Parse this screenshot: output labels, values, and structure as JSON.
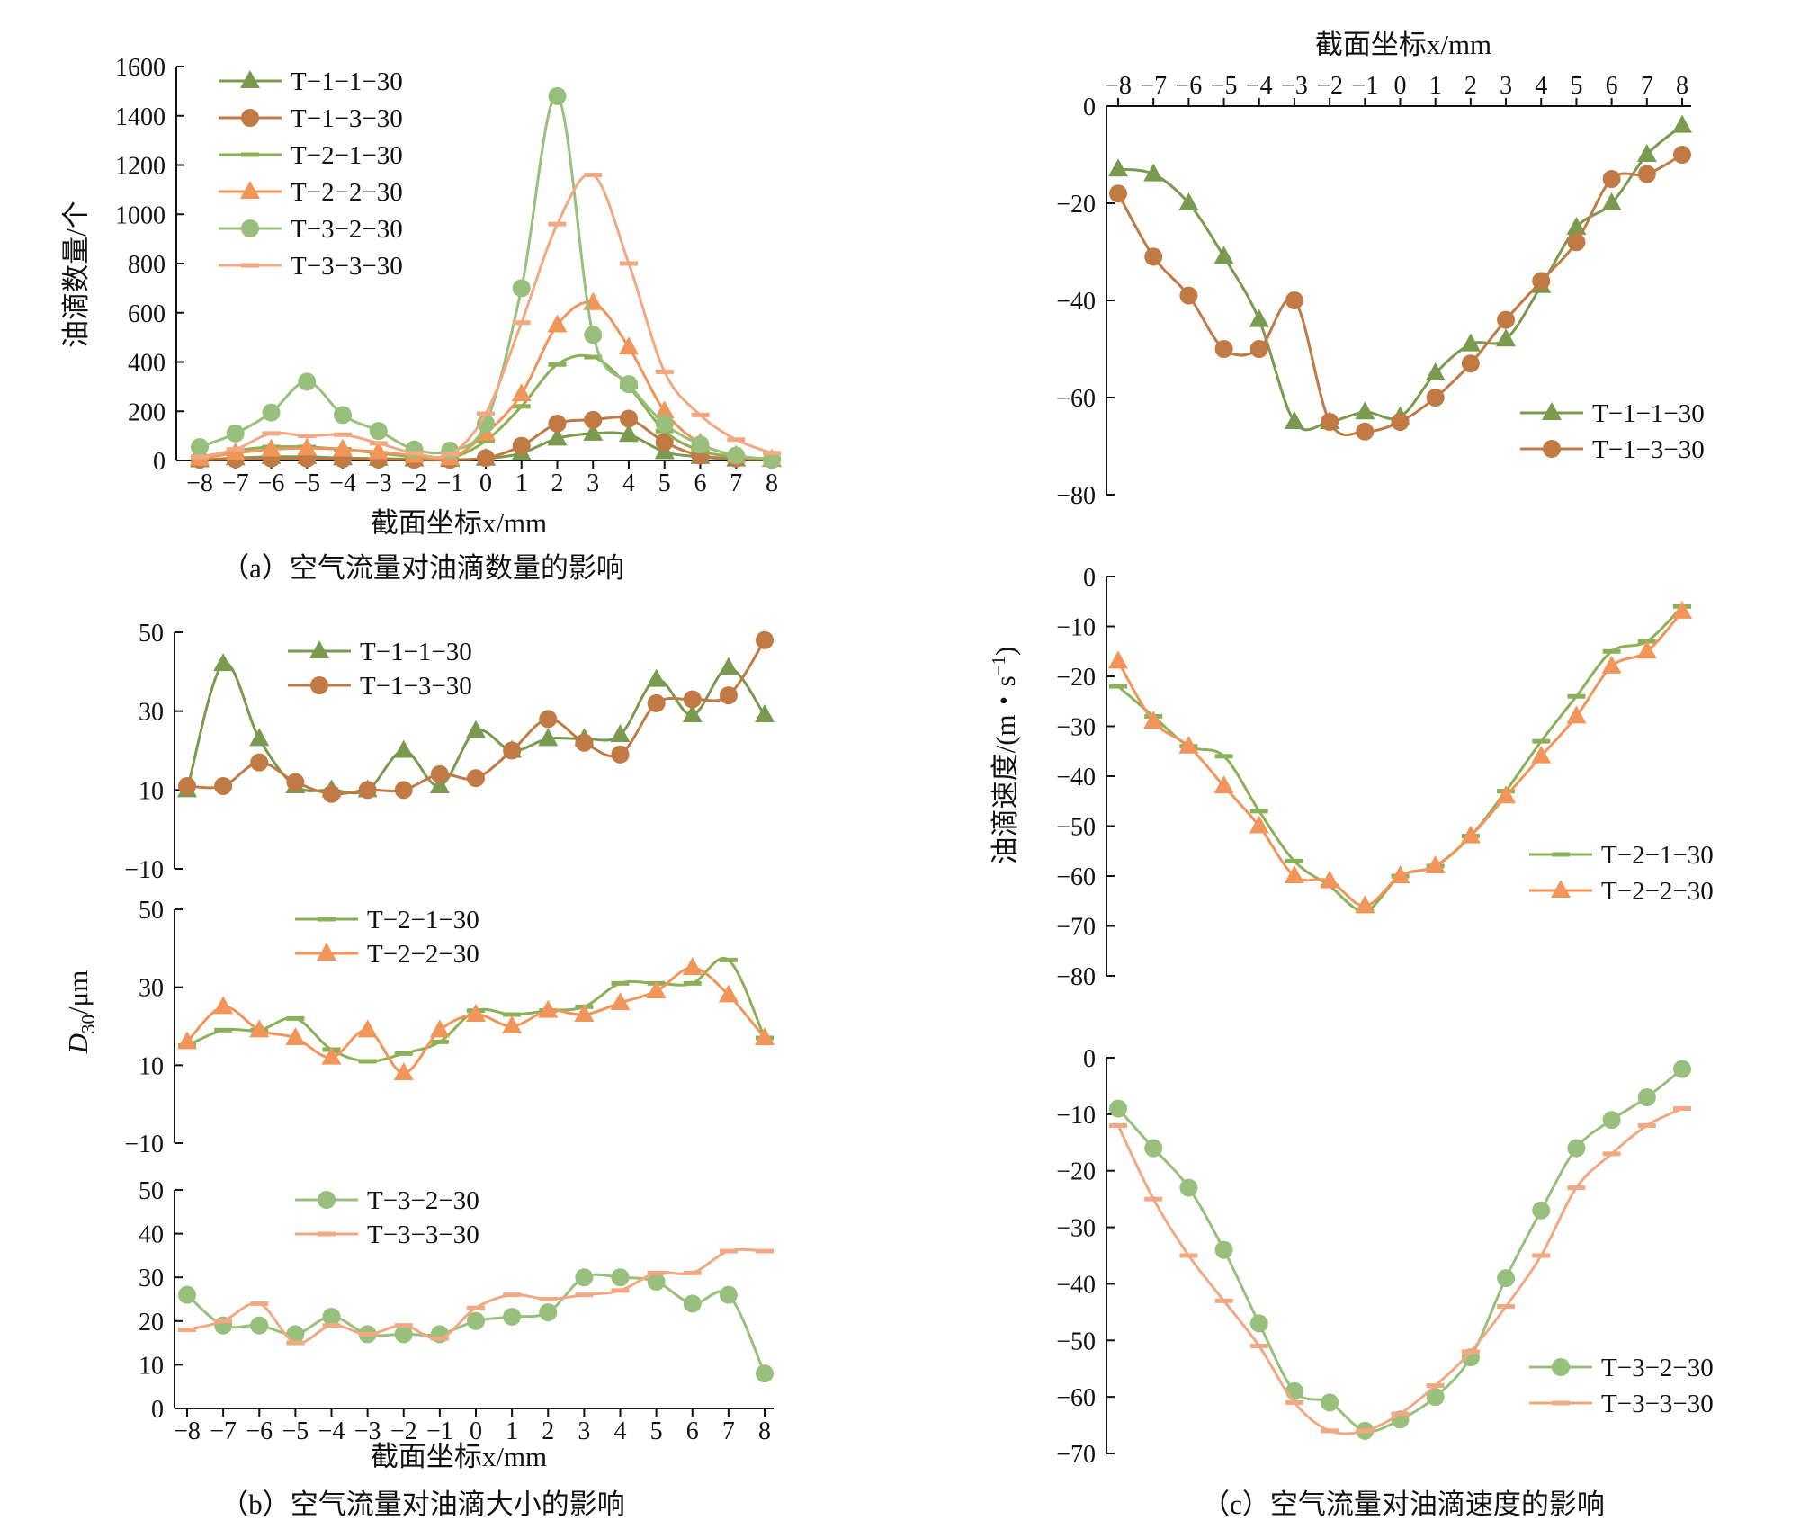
{
  "x_categories": [
    "−8",
    "−7",
    "−6",
    "−5",
    "−4",
    "−3",
    "−2",
    "−1",
    "0",
    "1",
    "2",
    "3",
    "4",
    "5",
    "6",
    "7",
    "8"
  ],
  "chart_data": [
    {
      "id": "a",
      "type": "line",
      "caption": "（a）空气流量对油滴数量的影响",
      "xlabel": "截面坐标x/mm",
      "ylabel": "油滴数量/个",
      "ylim": [
        0,
        1600
      ],
      "yticks": [
        "0",
        "200",
        "400",
        "600",
        "800",
        "1000",
        "1200",
        "1400",
        "1600"
      ],
      "legend_position": "top-left",
      "series": [
        {
          "name": "T−1−1−30",
          "color": "#7a9a4f",
          "marker": "triangle",
          "values": [
            2,
            10,
            15,
            15,
            10,
            8,
            5,
            3,
            8,
            30,
            90,
            110,
            105,
            35,
            15,
            5,
            3
          ]
        },
        {
          "name": "T−1−3−30",
          "color": "#c27a45",
          "marker": "circle",
          "values": [
            3,
            5,
            8,
            8,
            6,
            4,
            3,
            3,
            10,
            60,
            150,
            165,
            170,
            75,
            20,
            8,
            3
          ]
        },
        {
          "name": "T−2−1−30",
          "color": "#8ab058",
          "marker": "dash",
          "values": [
            10,
            40,
            55,
            55,
            45,
            30,
            15,
            10,
            80,
            220,
            390,
            420,
            300,
            120,
            40,
            15,
            5
          ]
        },
        {
          "name": "T−2−2−30",
          "color": "#f2955a",
          "marker": "triangle",
          "values": [
            8,
            30,
            45,
            50,
            45,
            35,
            20,
            10,
            110,
            270,
            550,
            640,
            460,
            200,
            70,
            20,
            5
          ]
        },
        {
          "name": "T−3−2−30",
          "color": "#98bf7c",
          "marker": "circle",
          "values": [
            55,
            110,
            195,
            320,
            185,
            120,
            45,
            40,
            150,
            700,
            1480,
            510,
            310,
            150,
            65,
            20,
            3
          ]
        },
        {
          "name": "T−3−3−30",
          "color": "#f2a882",
          "marker": "dash",
          "values": [
            15,
            45,
            110,
            100,
            105,
            70,
            30,
            25,
            190,
            560,
            960,
            1160,
            800,
            360,
            185,
            85,
            30
          ]
        }
      ]
    },
    {
      "id": "b",
      "type": "line",
      "caption": "（b）空气流量对油滴大小的影响",
      "xlabel": "截面坐标x/mm",
      "ylabel_main": "D",
      "ylabel_sub": "30",
      "ylabel_unit": "/μm",
      "panels": [
        {
          "ylim": [
            -10,
            50
          ],
          "yticks": [
            "−10",
            "10",
            "30",
            "50"
          ],
          "series": [
            {
              "name": "T−1−1−30",
              "color": "#7a9a4f",
              "marker": "triangle",
              "values": [
                10,
                42,
                23,
                11,
                10,
                10,
                20,
                11,
                25,
                20,
                23,
                23,
                24,
                38,
                29,
                41,
                29
              ]
            },
            {
              "name": "T−1−3−30",
              "color": "#c27a45",
              "marker": "circle",
              "values": [
                11,
                11,
                17,
                12,
                9,
                10,
                10,
                14,
                13,
                20,
                28,
                22,
                19,
                32,
                33,
                34,
                48
              ]
            }
          ]
        },
        {
          "ylim": [
            -10,
            50
          ],
          "yticks": [
            "−10",
            "10",
            "30",
            "50"
          ],
          "series": [
            {
              "name": "T−2−1−30",
              "color": "#8ab058",
              "marker": "dash",
              "values": [
                15,
                19,
                19,
                22,
                14,
                11,
                13,
                16,
                24,
                23,
                24,
                25,
                31,
                31,
                31,
                37,
                17
              ]
            },
            {
              "name": "T−2−2−30",
              "color": "#f2955a",
              "marker": "triangle",
              "values": [
                16,
                25,
                19,
                17,
                12,
                19,
                8,
                19,
                23,
                20,
                24,
                23,
                26,
                29,
                35,
                28,
                17
              ]
            }
          ]
        },
        {
          "ylim": [
            0,
            50
          ],
          "yticks": [
            "0",
            "10",
            "20",
            "30",
            "40",
            "50"
          ],
          "series": [
            {
              "name": "T−3−2−30",
              "color": "#98bf7c",
              "marker": "circle",
              "values": [
                26,
                19,
                19,
                17,
                21,
                17,
                17,
                17,
                20,
                21,
                22,
                30,
                30,
                29,
                24,
                26,
                8
              ]
            },
            {
              "name": "T−3−3−30",
              "color": "#f2a882",
              "marker": "dash",
              "values": [
                18,
                20,
                24,
                15,
                19,
                17,
                19,
                16,
                23,
                26,
                25,
                26,
                27,
                31,
                31,
                36,
                36
              ]
            }
          ]
        }
      ]
    },
    {
      "id": "c",
      "type": "line",
      "caption": "（c）空气流量对油滴速度的影响",
      "xlabel_top": "截面坐标x/mm",
      "ylabel": "油滴速度/(m・s",
      "ylabel_sup": "−1",
      "ylabel_close": ")",
      "panels": [
        {
          "ylim": [
            -80,
            0
          ],
          "yticks": [
            "0",
            "−20",
            "−40",
            "−60",
            "−80"
          ],
          "series": [
            {
              "name": "T−1−1−30",
              "color": "#7a9a4f",
              "marker": "triangle",
              "values": [
                -13,
                -14,
                -20,
                -31,
                -44,
                -65,
                -65,
                -63,
                -64,
                -55,
                -49,
                -48,
                -37,
                -25,
                -20,
                -10,
                -4
              ]
            },
            {
              "name": "T−1−3−30",
              "color": "#c27a45",
              "marker": "circle",
              "values": [
                -18,
                -31,
                -39,
                -50,
                -50,
                -40,
                -65,
                -67,
                -65,
                -60,
                -53,
                -44,
                -36,
                -28,
                -15,
                -14,
                -10
              ]
            }
          ]
        },
        {
          "ylim": [
            -80,
            0
          ],
          "yticks": [
            "0",
            "−10",
            "−20",
            "−30",
            "−40",
            "−50",
            "−60",
            "−70",
            "−80"
          ],
          "series": [
            {
              "name": "T−2−1−30",
              "color": "#8ab058",
              "marker": "dash",
              "values": [
                -22,
                -28,
                -34,
                -36,
                -47,
                -57,
                -62,
                -67,
                -60,
                -58,
                -52,
                -43,
                -33,
                -24,
                -15,
                -13,
                -6
              ]
            },
            {
              "name": "T−2−2−30",
              "color": "#f2955a",
              "marker": "triangle",
              "values": [
                -17,
                -29,
                -34,
                -42,
                -50,
                -60,
                -61,
                -66,
                -60,
                -58,
                -52,
                -44,
                -36,
                -28,
                -18,
                -15,
                -7
              ]
            }
          ]
        },
        {
          "ylim": [
            -70,
            0
          ],
          "yticks": [
            "0",
            "−10",
            "−20",
            "−30",
            "−40",
            "−50",
            "−60",
            "−70"
          ],
          "series": [
            {
              "name": "T−3−2−30",
              "color": "#98bf7c",
              "marker": "circle",
              "values": [
                -9,
                -16,
                -23,
                -34,
                -47,
                -59,
                -61,
                -66,
                -64,
                -60,
                -53,
                -39,
                -27,
                -16,
                -11,
                -7,
                -2
              ]
            },
            {
              "name": "T−3−3−30",
              "color": "#f2a882",
              "marker": "dash",
              "values": [
                -12,
                -25,
                -35,
                -43,
                -51,
                -61,
                -66,
                -66,
                -63,
                -58,
                -52,
                -44,
                -35,
                -23,
                -17,
                -12,
                -9
              ]
            }
          ]
        }
      ]
    }
  ]
}
